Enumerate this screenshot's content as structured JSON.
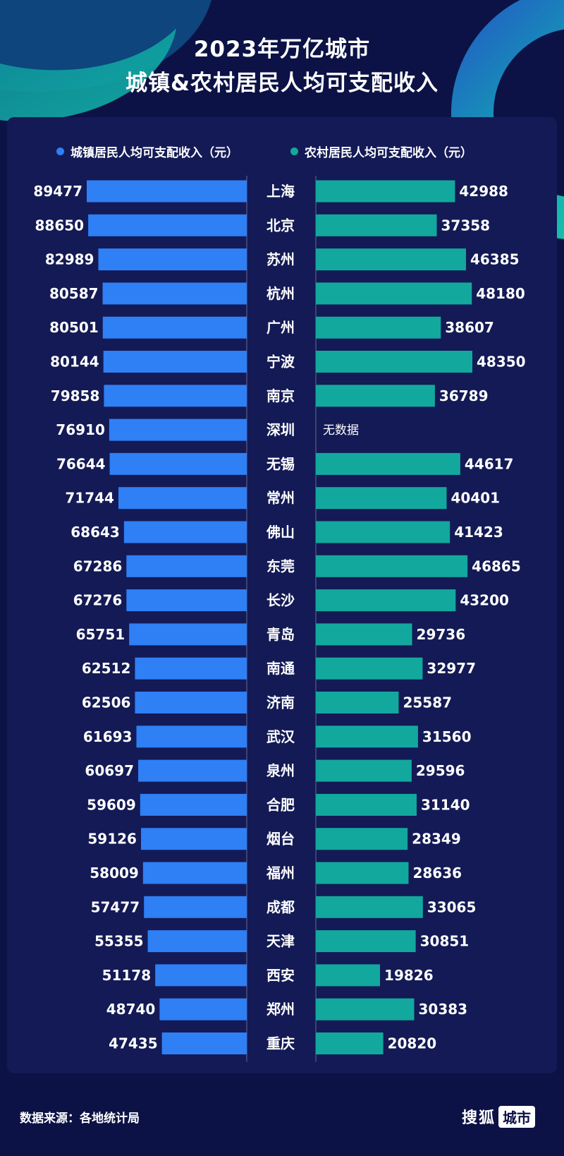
{
  "title_line1": "2023年万亿城市",
  "title_line2": "城镇&农村居民人均可支配收入",
  "colors": {
    "urban": "#2f7ff5",
    "rural": "#13a89e",
    "background": "#0c1245"
  },
  "legend": {
    "urban": "城镇居民人均可支配收入（元）",
    "rural": "农村居民人均可支配收入（元）"
  },
  "footer": {
    "source": "数据来源：各地统计局",
    "logo_text": "搜狐",
    "logo_box": "城市"
  },
  "missing_label": "无数据",
  "chart_data": {
    "type": "bar",
    "categories": [
      "上海",
      "北京",
      "苏州",
      "杭州",
      "广州",
      "宁波",
      "南京",
      "深圳",
      "无锡",
      "常州",
      "佛山",
      "东莞",
      "长沙",
      "青岛",
      "南通",
      "济南",
      "武汉",
      "泉州",
      "合肥",
      "烟台",
      "福州",
      "成都",
      "天津",
      "西安",
      "郑州",
      "重庆"
    ],
    "series": [
      {
        "name": "城镇居民人均可支配收入（元）",
        "values": [
          89477,
          88650,
          82989,
          80587,
          80501,
          80144,
          79858,
          76910,
          76644,
          71744,
          68643,
          67286,
          67276,
          65751,
          62512,
          62506,
          61693,
          60697,
          59609,
          59126,
          58009,
          57477,
          55355,
          51178,
          48740,
          47435
        ]
      },
      {
        "name": "农村居民人均可支配收入（元）",
        "values": [
          42988,
          37358,
          46385,
          48180,
          38607,
          48350,
          36789,
          null,
          44617,
          40401,
          41423,
          46865,
          43200,
          29736,
          32977,
          25587,
          31560,
          29596,
          31140,
          28349,
          28636,
          33065,
          30851,
          19826,
          30383,
          20820
        ]
      }
    ]
  }
}
